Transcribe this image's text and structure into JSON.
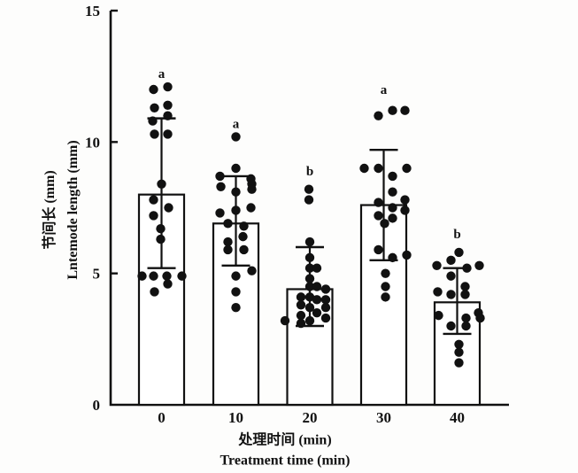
{
  "figure": {
    "background": "#fdfdfc",
    "ink": "#111111",
    "bar_fill": "#ffffff"
  },
  "chart_data": {
    "type": "bar",
    "subtype": "bar-with-jittered-dots-and-error-bars",
    "title": "",
    "categories": [
      "0",
      "10",
      "20",
      "30",
      "40"
    ],
    "values": [
      8.0,
      6.9,
      4.4,
      7.6,
      3.9
    ],
    "error_top": [
      10.9,
      8.7,
      6.0,
      9.7,
      5.2
    ],
    "error_bottom": [
      5.2,
      5.3,
      3.0,
      5.5,
      2.7
    ],
    "sig_letters": [
      "a",
      "a",
      "b",
      "a",
      "b"
    ],
    "sig_letter_y": [
      12.6,
      10.7,
      8.9,
      12.0,
      6.5
    ],
    "points": [
      [
        [
          -9,
          12.0
        ],
        [
          7,
          12.1
        ],
        [
          -8,
          11.3
        ],
        [
          7,
          11.4
        ],
        [
          7,
          11.0
        ],
        [
          -10,
          10.8
        ],
        [
          -8,
          10.3
        ],
        [
          7,
          10.3
        ],
        [
          0,
          8.4
        ],
        [
          -9,
          7.8
        ],
        [
          8,
          7.5
        ],
        [
          -9,
          7.2
        ],
        [
          -1,
          6.7
        ],
        [
          -1,
          6.3
        ],
        [
          -22,
          4.9
        ],
        [
          -9,
          4.9
        ],
        [
          6,
          4.9
        ],
        [
          23,
          4.9
        ],
        [
          7,
          4.6
        ],
        [
          -8,
          4.3
        ]
      ],
      [
        [
          0,
          10.2
        ],
        [
          0,
          9.0
        ],
        [
          -18,
          8.7
        ],
        [
          17,
          8.6
        ],
        [
          18,
          8.4
        ],
        [
          -17,
          8.3
        ],
        [
          18,
          8.2
        ],
        [
          0,
          8.1
        ],
        [
          17,
          7.5
        ],
        [
          0,
          7.4
        ],
        [
          -18,
          7.3
        ],
        [
          -9,
          6.9
        ],
        [
          9,
          6.8
        ],
        [
          8,
          6.4
        ],
        [
          -9,
          6.2
        ],
        [
          -9,
          5.9
        ],
        [
          9,
          5.9
        ],
        [
          18,
          5.1
        ],
        [
          0,
          4.9
        ],
        [
          0,
          4.3
        ],
        [
          0,
          3.7
        ]
      ],
      [
        [
          -1,
          8.2
        ],
        [
          -1,
          7.8
        ],
        [
          0,
          6.2
        ],
        [
          0,
          5.6
        ],
        [
          0,
          5.2
        ],
        [
          8,
          5.2
        ],
        [
          0,
          4.8
        ],
        [
          0,
          4.5
        ],
        [
          8,
          4.5
        ],
        [
          18,
          4.4
        ],
        [
          -10,
          4.1
        ],
        [
          0,
          4.1
        ],
        [
          8,
          4.0
        ],
        [
          18,
          4.0
        ],
        [
          -10,
          3.8
        ],
        [
          0,
          3.7
        ],
        [
          18,
          3.7
        ],
        [
          8,
          3.5
        ],
        [
          -10,
          3.4
        ],
        [
          -28,
          3.2
        ],
        [
          0,
          3.2
        ],
        [
          -10,
          3.1
        ],
        [
          18,
          3.3
        ]
      ],
      [
        [
          -6,
          11.0
        ],
        [
          10,
          11.2
        ],
        [
          24,
          11.2
        ],
        [
          -22,
          9.0
        ],
        [
          -6,
          9.0
        ],
        [
          26,
          9.0
        ],
        [
          10,
          8.7
        ],
        [
          10,
          8.1
        ],
        [
          24,
          7.8
        ],
        [
          -6,
          7.7
        ],
        [
          10,
          7.5
        ],
        [
          24,
          7.4
        ],
        [
          -6,
          7.2
        ],
        [
          10,
          7.1
        ],
        [
          1,
          6.9
        ],
        [
          -6,
          5.9
        ],
        [
          26,
          5.7
        ],
        [
          10,
          5.6
        ],
        [
          2,
          5.0
        ],
        [
          2,
          4.5
        ],
        [
          2,
          4.1
        ]
      ],
      [
        [
          2,
          5.8
        ],
        [
          -7,
          5.5
        ],
        [
          -23,
          5.3
        ],
        [
          25,
          5.3
        ],
        [
          11,
          5.2
        ],
        [
          -7,
          4.9
        ],
        [
          9,
          4.5
        ],
        [
          -22,
          4.3
        ],
        [
          9,
          4.2
        ],
        [
          -7,
          4.2
        ],
        [
          24,
          3.5
        ],
        [
          -21,
          3.4
        ],
        [
          10,
          3.3
        ],
        [
          26,
          3.3
        ],
        [
          -7,
          3.0
        ],
        [
          10,
          3.0
        ],
        [
          2,
          2.3
        ],
        [
          2,
          2.0
        ],
        [
          2,
          1.6
        ]
      ]
    ],
    "xlabel_cn": "处理时间 (min)",
    "xlabel_en": "Treatment time (min)",
    "ylabel_cn": "节间长 (mm)",
    "ylabel_en": "Lntemode length (mm)",
    "y_ticks": [
      0,
      5,
      10,
      15
    ],
    "ylim": [
      0,
      15
    ],
    "grid": false,
    "legend": "none"
  }
}
